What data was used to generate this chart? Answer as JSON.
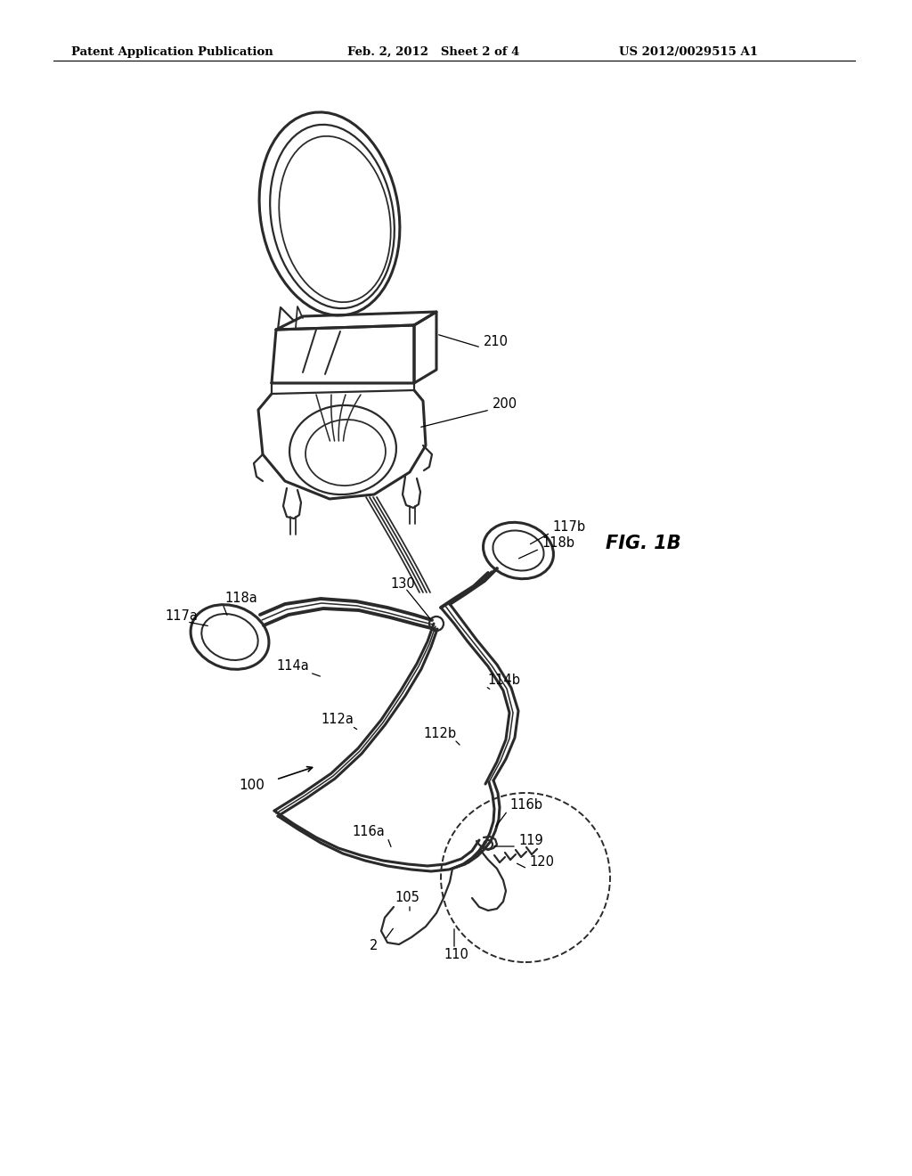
{
  "background_color": "#ffffff",
  "header_left": "Patent Application Publication",
  "header_center": "Feb. 2, 2012   Sheet 2 of 4",
  "header_right": "US 2012/0029515 A1",
  "fig_label": "FIG. 1B",
  "line_color": "#2a2a2a",
  "label_color": "#000000"
}
